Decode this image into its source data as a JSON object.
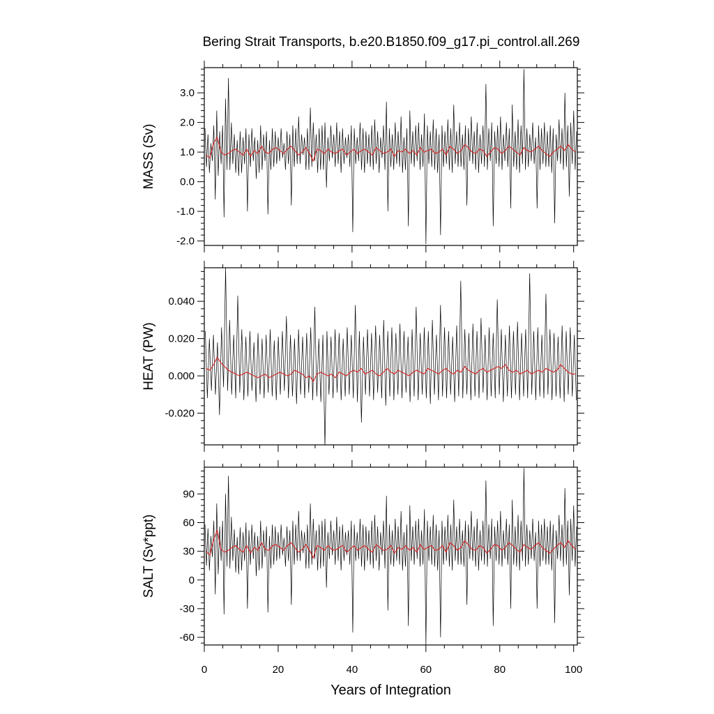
{
  "title": "Bering Strait Transports, b.e20.B1850.f09_g17.pi_control.all.269",
  "colors": {
    "monthly": "#000000",
    "annual": "#d62020",
    "frame": "#000000"
  },
  "chart_data": [
    {
      "type": "line",
      "panel": "mass",
      "ylabel": "MASS (Sv)",
      "xlabel": "",
      "xlim": [
        0,
        101
      ],
      "ylim": [
        -2.15,
        3.85
      ],
      "yticks": [
        -2.0,
        -1.0,
        0.0,
        1.0,
        2.0,
        3.0
      ],
      "ytick_labels": [
        "-2.0",
        "-1.0",
        "0.0",
        "1.0",
        "2.0",
        "3.0"
      ],
      "series": [
        {
          "kind": "monthly",
          "color": "#000000",
          "values": [
            1.8,
            0.5,
            1.6,
            0.3,
            1.3,
            0.7,
            1.9,
            -0.6,
            2.4,
            0.2,
            1.7,
            0.6,
            1.9,
            -1.2,
            2.8,
            0.4,
            3.5,
            0.4,
            2.0,
            0.6,
            1.6,
            0.3,
            1.4,
            0.2,
            1.7,
            0.3,
            1.5,
            0.6,
            1.8,
            -1.0,
            1.6,
            0.5,
            1.8,
            0.7,
            1.5,
            0.1,
            1.4,
            0.3,
            1.9,
            0.4,
            1.6,
            0.7,
            1.7,
            -1.1,
            1.4,
            0.4,
            1.8,
            0.5,
            1.7,
            0.6,
            1.5,
            0.7,
            1.8,
            0.8,
            1.3,
            0.4,
            1.7,
            0.6,
            1.6,
            -0.8,
            1.9,
            0.5,
            1.8,
            0.6,
            2.2,
            0.6,
            1.6,
            0.9,
            1.5,
            0.4,
            1.8,
            0.4,
            2.5,
            0.5,
            2.0,
            0.7,
            1.6,
            0.3,
            1.8,
            0.4,
            1.9,
            0.4,
            2.0,
            -0.2,
            1.5,
            0.7,
            1.9,
            0.8,
            1.6,
            0.5,
            2.0,
            0.6,
            1.7,
            0.3,
            1.8,
            0.6,
            1.5,
            0.8,
            1.6,
            0.5,
            1.9,
            -1.7,
            1.8,
            0.6,
            1.5,
            0.7,
            2.0,
            0.4,
            1.8,
            0.3,
            1.7,
            0.6,
            1.6,
            0.5,
            1.9,
            0.4,
            2.1,
            0.6,
            1.7,
            0.3,
            1.5,
            0.8,
            1.9,
            0.4,
            2.7,
            -1.0,
            1.8,
            0.5,
            1.6,
            0.4,
            2.0,
            0.6,
            1.7,
            0.5,
            2.2,
            0.3,
            1.5,
            0.4,
            1.8,
            -1.5,
            2.4,
            0.6,
            1.7,
            0.5,
            1.9,
            0.7,
            2.0,
            0.4,
            1.6,
            0.5,
            2.3,
            -2.1,
            1.9,
            0.6,
            1.7,
            0.5,
            2.1,
            0.4,
            1.8,
            0.3,
            1.6,
            -1.8,
            1.9,
            0.5,
            1.7,
            0.6,
            2.1,
            0.4,
            1.8,
            0.3,
            2.6,
            0.6,
            1.7,
            0.5,
            2.0,
            0.5,
            1.6,
            0.4,
            1.9,
            -0.8,
            1.8,
            0.7,
            2.2,
            0.6,
            1.7,
            0.4,
            2.0,
            0.3,
            1.6,
            0.6,
            1.9,
            0.5,
            3.3,
            0.4,
            1.8,
            0.7,
            2.0,
            -1.5,
            1.7,
            0.6,
            1.9,
            0.5,
            2.2,
            0.4,
            1.6,
            0.7,
            2.0,
            0.5,
            1.8,
            -0.9,
            2.6,
            0.5,
            1.7,
            0.4,
            2.1,
            0.3,
            1.9,
            0.6,
            3.8,
            0.4,
            1.8,
            0.5,
            1.6,
            0.7,
            2.0,
            0.6,
            1.5,
            -0.9,
            1.9,
            0.4,
            1.8,
            0.6,
            2.0,
            0.5,
            1.7,
            0.5,
            1.9,
            0.3,
            1.8,
            -1.4,
            1.6,
            0.7,
            2.1,
            0.6,
            1.8,
            0.4,
            3.0,
            0.5,
            1.9,
            -0.5,
            2.0,
            0.6,
            2.4,
            0.4,
            1.7
          ]
        },
        {
          "kind": "annual",
          "color": "#d62020",
          "values": [
            0.9,
            0.8,
            1.3,
            1.5,
            1.0,
            0.9,
            0.95,
            1.05,
            1.1,
            1.0,
            0.9,
            1.1,
            0.85,
            1.05,
            0.95,
            1.2,
            1.0,
            0.95,
            1.1,
            1.15,
            1.05,
            0.95,
            1.1,
            1.2,
            1.05,
            0.9,
            1.0,
            1.15,
            0.95,
            0.7,
            1.1,
            1.05,
            0.95,
            1.1,
            1.0,
            0.95,
            1.05,
            1.1,
            0.9,
            1.0,
            1.1,
            0.95,
            1.05,
            1.1,
            1.0,
            0.9,
            1.15,
            1.05,
            0.95,
            1.0,
            1.1,
            0.85,
            1.05,
            1.0,
            1.1,
            0.95,
            1.05,
            0.9,
            1.15,
            1.0,
            1.05,
            1.1,
            0.95,
            1.0,
            1.1,
            0.9,
            1.2,
            1.1,
            0.95,
            1.05,
            1.25,
            1.15,
            1.0,
            0.95,
            1.1,
            1.05,
            0.85,
            1.0,
            1.15,
            1.1,
            0.95,
            1.05,
            1.2,
            1.1,
            1.0,
            0.9,
            1.15,
            1.05,
            1.0,
            1.1,
            1.2,
            1.05,
            0.95,
            0.85,
            1.0,
            1.1,
            1.2,
            1.05,
            1.25,
            1.1,
            1.0
          ]
        }
      ]
    },
    {
      "type": "line",
      "panel": "heat",
      "ylabel": "HEAT (PW)",
      "xlabel": "",
      "xlim": [
        0,
        101
      ],
      "ylim": [
        -0.037,
        0.058
      ],
      "yticks": [
        -0.02,
        0.0,
        0.02,
        0.04
      ],
      "ytick_labels": [
        "-0.020",
        "0.000",
        "0.020",
        "0.040"
      ],
      "series": [
        {
          "kind": "monthly",
          "color": "#000000",
          "values": [
            0.024,
            -0.012,
            0.02,
            -0.008,
            0.022,
            -0.01,
            0.018,
            -0.021,
            0.026,
            -0.006,
            0.058,
            -0.008,
            0.03,
            -0.01,
            0.022,
            -0.012,
            0.043,
            -0.009,
            0.025,
            -0.013,
            0.021,
            -0.011,
            0.024,
            -0.008,
            0.018,
            -0.014,
            0.023,
            -0.01,
            0.02,
            -0.012,
            0.022,
            -0.009,
            0.025,
            -0.011,
            0.019,
            -0.013,
            0.021,
            -0.01,
            0.024,
            -0.008,
            0.032,
            -0.012,
            0.022,
            -0.011,
            0.02,
            -0.015,
            0.025,
            -0.01,
            0.021,
            -0.012,
            0.023,
            -0.009,
            0.026,
            -0.013,
            0.037,
            -0.011,
            0.02,
            -0.014,
            0.022,
            -0.038,
            0.024,
            -0.01,
            0.021,
            -0.012,
            0.025,
            -0.009,
            0.023,
            -0.013,
            0.02,
            -0.011,
            0.026,
            -0.01,
            0.022,
            -0.012,
            0.038,
            -0.014,
            0.024,
            -0.025,
            0.021,
            -0.01,
            0.025,
            -0.011,
            0.023,
            -0.013,
            0.027,
            -0.009,
            0.022,
            -0.012,
            0.03,
            -0.016,
            0.024,
            -0.011,
            0.026,
            -0.013,
            0.023,
            -0.01,
            0.028,
            -0.012,
            0.024,
            -0.009,
            0.021,
            -0.014,
            0.025,
            -0.011,
            0.037,
            -0.013,
            0.023,
            -0.01,
            0.026,
            -0.012,
            0.024,
            -0.015,
            0.03,
            -0.01,
            0.022,
            -0.013,
            0.038,
            -0.011,
            0.026,
            -0.012,
            0.024,
            -0.01,
            0.021,
            -0.014,
            0.027,
            -0.011,
            0.051,
            -0.012,
            0.025,
            -0.01,
            0.023,
            -0.013,
            0.028,
            -0.011,
            0.024,
            -0.012,
            0.031,
            -0.009,
            0.022,
            -0.013,
            0.026,
            -0.011,
            0.023,
            -0.012,
            0.041,
            -0.01,
            0.025,
            -0.014,
            0.022,
            -0.011,
            0.027,
            -0.012,
            0.024,
            -0.01,
            0.029,
            -0.013,
            0.023,
            -0.011,
            0.025,
            -0.012,
            0.055,
            -0.01,
            0.024,
            -0.013,
            0.026,
            -0.011,
            0.022,
            -0.012,
            0.044,
            -0.01,
            0.025,
            -0.013,
            0.023,
            -0.011,
            0.021,
            -0.012,
            0.027,
            -0.014,
            0.024,
            -0.01,
            0.026,
            -0.011,
            0.022,
            -0.013
          ]
        },
        {
          "kind": "annual",
          "color": "#d62020",
          "values": [
            0.004,
            0.003,
            0.006,
            0.01,
            0.007,
            0.005,
            0.003,
            0.002,
            0.001,
            0.0,
            0.001,
            0.002,
            0.001,
            0.0,
            -0.001,
            0.0,
            0.001,
            -0.001,
            0.0,
            0.001,
            0.002,
            0.001,
            0.0,
            0.001,
            0.003,
            0.002,
            0.001,
            -0.001,
            0.0,
            -0.003,
            0.001,
            0.002,
            0.001,
            0.0,
            0.001,
            -0.001,
            0.002,
            0.001,
            0.0,
            0.002,
            0.003,
            0.002,
            0.004,
            0.001,
            0.002,
            0.003,
            0.001,
            0.0,
            0.002,
            0.004,
            0.002,
            0.001,
            0.003,
            0.002,
            0.001,
            0.0,
            0.002,
            0.003,
            0.002,
            0.001,
            0.004,
            0.003,
            0.002,
            0.001,
            0.003,
            0.004,
            0.002,
            0.001,
            0.003,
            0.002,
            0.005,
            0.003,
            0.002,
            0.001,
            0.003,
            0.004,
            0.002,
            0.003,
            0.004,
            0.005,
            0.004,
            0.006,
            0.003,
            0.002,
            0.003,
            0.001,
            0.002,
            0.003,
            0.001,
            0.002,
            0.003,
            0.002,
            0.004,
            0.003,
            0.002,
            0.003,
            0.006,
            0.004,
            0.002,
            0.001,
            0.001
          ]
        }
      ]
    },
    {
      "type": "line",
      "panel": "salt",
      "ylabel": "SALT (Sv*ppt)",
      "xlabel": "Years of Integration",
      "xlim": [
        0,
        101
      ],
      "ylim": [
        -68,
        118
      ],
      "xticks": [
        0,
        20,
        40,
        60,
        80,
        100
      ],
      "xtick_labels": [
        "0",
        "20",
        "40",
        "60",
        "80",
        "100"
      ],
      "yticks": [
        -60,
        -30,
        0,
        30,
        60,
        90
      ],
      "ytick_labels": [
        "-60",
        "-30",
        "0",
        "30",
        "60",
        "90"
      ],
      "series": [
        {
          "kind": "monthly",
          "color": "#000000",
          "values": [
            58,
            15,
            54,
            10,
            46,
            24,
            62,
            -15,
            80,
            6,
            56,
            20,
            62,
            -36,
            90,
            14,
            109,
            12,
            66,
            20,
            53,
            8,
            45,
            6,
            55,
            10,
            50,
            20,
            60,
            -30,
            52,
            16,
            58,
            22,
            50,
            4,
            46,
            10,
            62,
            12,
            52,
            24,
            56,
            -34,
            46,
            12,
            58,
            16,
            56,
            20,
            50,
            22,
            58,
            26,
            44,
            14,
            56,
            20,
            52,
            -26,
            62,
            16,
            58,
            20,
            72,
            20,
            52,
            28,
            50,
            12,
            58,
            12,
            80,
            16,
            64,
            22,
            52,
            10,
            58,
            12,
            62,
            14,
            64,
            -8,
            50,
            22,
            62,
            26,
            52,
            16,
            66,
            20,
            56,
            10,
            58,
            20,
            50,
            26,
            52,
            16,
            62,
            -55,
            58,
            20,
            50,
            22,
            64,
            14,
            58,
            10,
            56,
            20,
            52,
            16,
            62,
            12,
            68,
            20,
            56,
            10,
            50,
            26,
            62,
            12,
            88,
            -32,
            58,
            16,
            52,
            14,
            64,
            20,
            56,
            16,
            72,
            10,
            50,
            14,
            58,
            -48,
            78,
            20,
            56,
            16,
            62,
            22,
            64,
            14,
            52,
            16,
            74,
            -68,
            62,
            20,
            56,
            16,
            68,
            14,
            58,
            10,
            52,
            -60,
            62,
            16,
            56,
            20,
            68,
            14,
            58,
            10,
            84,
            20,
            56,
            16,
            64,
            16,
            52,
            14,
            62,
            -26,
            58,
            22,
            72,
            20,
            56,
            14,
            64,
            10,
            52,
            20,
            62,
            16,
            104,
            14,
            58,
            22,
            64,
            -48,
            56,
            20,
            62,
            16,
            72,
            14,
            52,
            22,
            64,
            16,
            58,
            -30,
            84,
            16,
            56,
            14,
            68,
            10,
            62,
            20,
            117,
            14,
            58,
            16,
            52,
            22,
            64,
            20,
            50,
            -30,
            62,
            14,
            58,
            20,
            64,
            16,
            56,
            16,
            62,
            10,
            58,
            -45,
            52,
            22,
            68,
            20,
            58,
            14,
            96,
            16,
            62,
            -16,
            64,
            20,
            78,
            14,
            56
          ]
        },
        {
          "kind": "annual",
          "color": "#d62020",
          "values": [
            30,
            26,
            42,
            52,
            32,
            29,
            31,
            34,
            36,
            32,
            29,
            36,
            28,
            34,
            31,
            39,
            32,
            31,
            36,
            37,
            34,
            31,
            36,
            39,
            34,
            29,
            32,
            37,
            31,
            23,
            36,
            34,
            31,
            36,
            32,
            31,
            34,
            36,
            29,
            32,
            36,
            31,
            34,
            36,
            32,
            29,
            37,
            34,
            31,
            32,
            36,
            28,
            34,
            32,
            36,
            31,
            34,
            29,
            37,
            32,
            34,
            36,
            31,
            32,
            36,
            29,
            39,
            36,
            31,
            34,
            41,
            37,
            32,
            31,
            36,
            34,
            28,
            32,
            37,
            36,
            31,
            34,
            39,
            36,
            32,
            29,
            37,
            34,
            32,
            36,
            39,
            34,
            31,
            28,
            32,
            36,
            39,
            34,
            41,
            36,
            32
          ]
        }
      ]
    }
  ]
}
